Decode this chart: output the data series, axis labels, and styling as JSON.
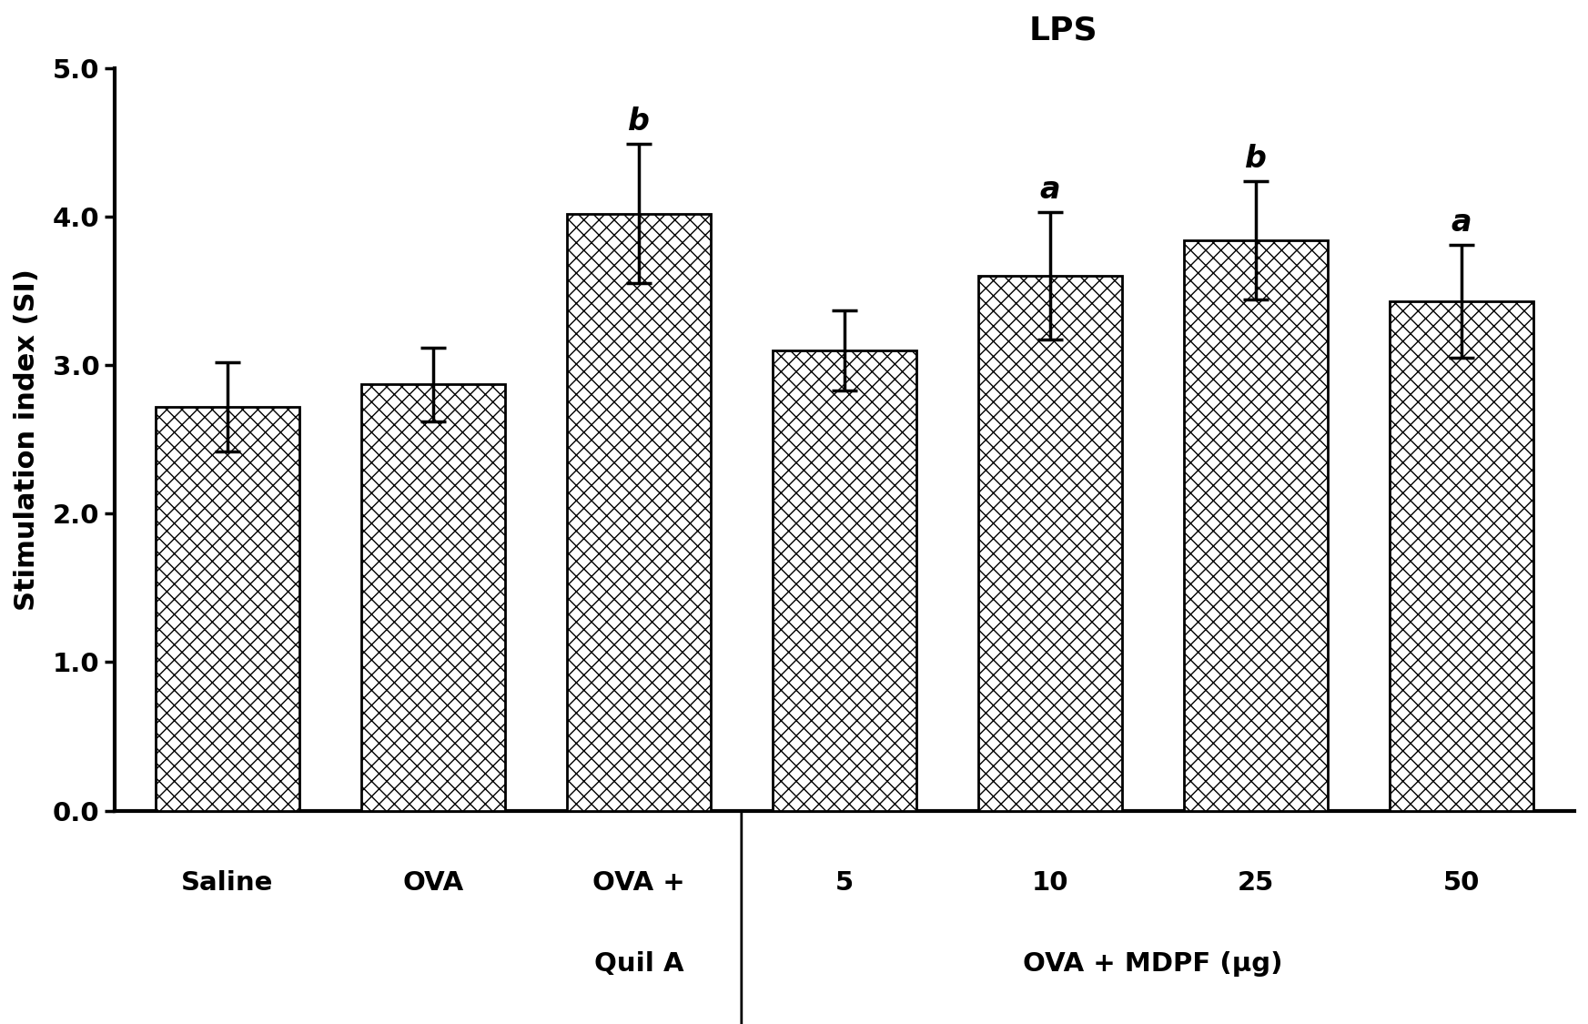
{
  "categories": [
    "Saline",
    "OVA",
    "OVA +\nQuil A",
    "5",
    "10",
    "25",
    "50"
  ],
  "values": [
    2.72,
    2.87,
    4.02,
    3.1,
    3.6,
    3.84,
    3.43
  ],
  "errors": [
    0.3,
    0.25,
    0.47,
    0.27,
    0.43,
    0.4,
    0.38
  ],
  "significance": [
    "",
    "",
    "b",
    "",
    "a",
    "b",
    "a"
  ],
  "title": "LPS",
  "ylabel": "Stimulation index (SI)",
  "ylim": [
    0.0,
    5.0
  ],
  "yticks": [
    0.0,
    1.0,
    2.0,
    3.0,
    4.0,
    5.0
  ],
  "group_label": "OVA + MDPF (μg)",
  "bar_color": "#ffffff",
  "bar_edgecolor": "#000000",
  "hatch_pattern": "xx",
  "title_fontsize": 26,
  "label_fontsize": 22,
  "tick_fontsize": 21,
  "sig_fontsize": 24,
  "bar_width": 0.7,
  "background_color": "#ffffff"
}
